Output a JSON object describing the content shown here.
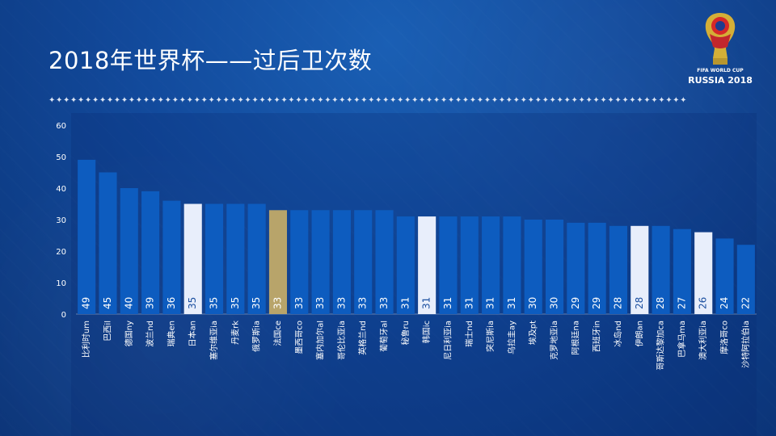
{
  "title": "2018年世界杯——过后卫次数",
  "divider": "✦✦✦✦✦✦✦✦✦✦✦✦✦✦✦✦✦✦✦✦✦✦✦✦✦✦✦✦✦✦✦✦✦✦✦✦✦✦✦✦✦✦✦✦✦✦✦✦✦✦✦✦✦✦✦✦✦✦✦✦✦✦✦✦✦✦✦✦✦✦✦✦✦✦✦✦✦✦✦✦✦✦✦✦✦✦✦✦",
  "logo": {
    "line1": "FIFA WORLD CUP",
    "line2": "RUSSIA 2018"
  },
  "colors": {
    "bar_default": "#0d5cbf",
    "bar_highlight_white": "#e8eefb",
    "bar_highlight_gold": "#b8a46a",
    "label_on_dark": "#ffffff",
    "label_on_light": "#1b4fa0"
  },
  "chart_data": {
    "type": "bar",
    "ylim": [
      0,
      60
    ],
    "yticks": [
      0,
      10,
      20,
      30,
      40,
      50,
      60
    ],
    "grid": false,
    "categories": [
      "比利时um",
      "巴西il",
      "德国ny",
      "波兰nd",
      "瑞典en",
      "日本an",
      "塞尔维亚ia",
      "丹麦rk",
      "俄罗斯ia",
      "法国ce",
      "墨西哥co",
      "塞内加尔al",
      "哥伦比亚ia",
      "英格兰nd",
      "葡萄牙al",
      "秘鲁ru",
      "韩国ic",
      "尼日利亚ia",
      "瑞士nd",
      "突尼斯ia",
      "乌拉圭ay",
      "埃及pt",
      "克罗地亚ia",
      "阿根廷na",
      "西班牙in",
      "冰岛nd",
      "伊朗an",
      "哥斯达黎加ca",
      "巴拿马ma",
      "澳大利亚ia",
      "摩洛哥co",
      "沙特阿拉伯ia"
    ],
    "values": [
      49,
      45,
      40,
      39,
      36,
      35,
      35,
      35,
      35,
      33,
      33,
      33,
      33,
      33,
      33,
      31,
      31,
      31,
      31,
      31,
      31,
      30,
      30,
      29,
      29,
      28,
      28,
      28,
      27,
      26,
      24,
      22
    ],
    "highlight": [
      "default",
      "default",
      "default",
      "default",
      "default",
      "white",
      "default",
      "default",
      "default",
      "gold",
      "default",
      "default",
      "default",
      "default",
      "default",
      "default",
      "white",
      "default",
      "default",
      "default",
      "default",
      "default",
      "default",
      "default",
      "default",
      "default",
      "white",
      "default",
      "default",
      "white",
      "default",
      "default"
    ]
  }
}
